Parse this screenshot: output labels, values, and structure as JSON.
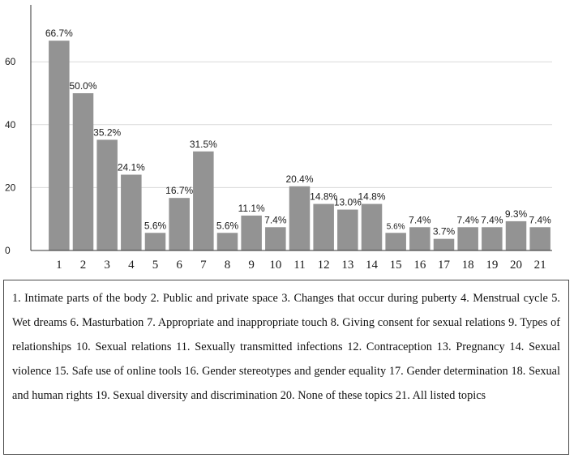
{
  "chart_data": {
    "type": "bar",
    "categories": [
      "1",
      "2",
      "3",
      "4",
      "5",
      "6",
      "7",
      "8",
      "9",
      "10",
      "11",
      "12",
      "13",
      "14",
      "15",
      "16",
      "17",
      "18",
      "19",
      "20",
      "21"
    ],
    "values": [
      66.7,
      50.0,
      35.2,
      24.1,
      5.6,
      16.7,
      31.5,
      5.6,
      11.1,
      7.4,
      20.4,
      14.8,
      13.0,
      14.8,
      5.6,
      7.4,
      3.7,
      7.4,
      7.4,
      9.3,
      7.4
    ],
    "value_labels": [
      "66.7%",
      "50.0%",
      "35.2%",
      "24.1%",
      "5.6%",
      "16.7%",
      "31.5%",
      "5.6%",
      "11.1%",
      "7.4%",
      "20.4%",
      "14.8%",
      "13.0%",
      "14.8%",
      "5.6%",
      "7.4%",
      "3.7%",
      "7.4%",
      "7.4%",
      "9.3%",
      "7.4%"
    ],
    "yticks": [
      0,
      20,
      40,
      60
    ],
    "ylim": [
      0,
      75
    ],
    "grid": true,
    "bar_color": "#939393",
    "title": "",
    "xlabel": "",
    "ylabel": ""
  },
  "legend_text": "1. Intimate parts of the body 2. Public and private space 3. Changes that occur during puberty 4. Menstrual cycle 5. Wet dreams 6. Masturbation 7. Appropriate and inappropriate touch 8. Giving consent for sexual relations 9. Types of relationships 10. Sexual relations 11. Sexually transmitted infections 12. Contraception 13. Pregnancy 14. Sexual violence 15. Safe use of online tools 16. Gender stereotypes and gender equality 17. Gender determination 18. Sexual and human rights 19. Sexual diversity and discrimination 20. None of these topics 21. All listed topics"
}
